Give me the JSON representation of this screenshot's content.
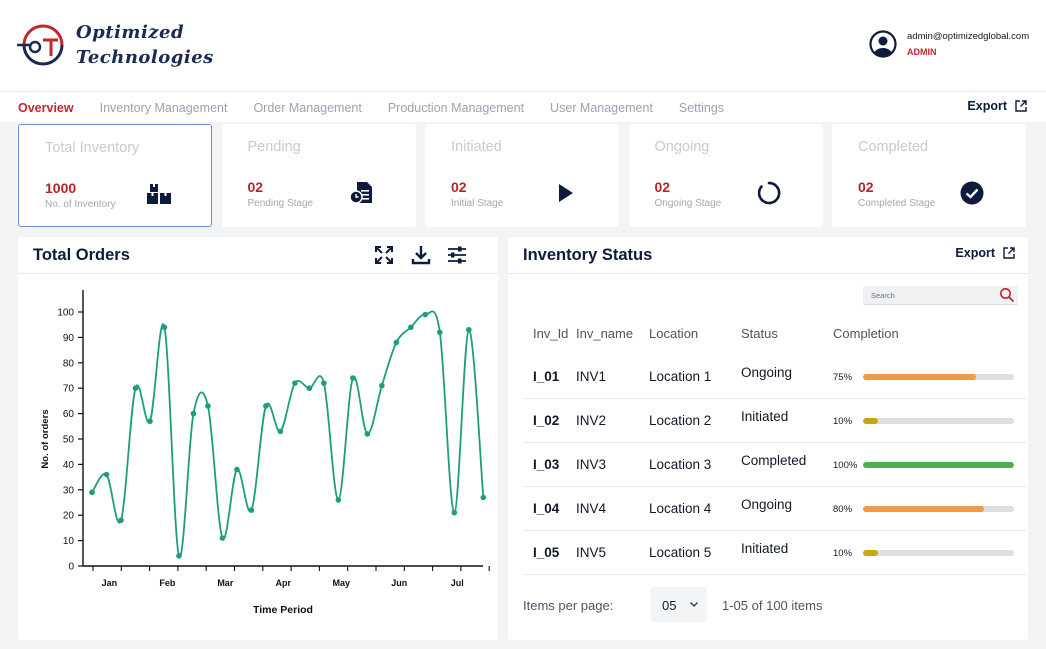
{
  "brand": {
    "line1": "Optimized",
    "line2": "Technologies",
    "mark": "OT",
    "colors": {
      "navy": "#1b2a55",
      "red": "#c0282d"
    }
  },
  "user": {
    "email": "admin@optimizedglobal.com",
    "role": "ADMIN",
    "icon": "user-circle-icon"
  },
  "nav": {
    "tabs": [
      "Overview",
      "Inventory Management",
      "Order Management",
      "Production Management",
      "User Management",
      "Settings"
    ],
    "active": "Overview",
    "export_label": "Export"
  },
  "stats": [
    {
      "title": "Total Inventory",
      "value": "1000",
      "sub": "No. of Inventory",
      "icon": "boxes-icon",
      "selected": true
    },
    {
      "title": "Pending",
      "value": "02",
      "sub": "Pending Stage",
      "icon": "pending-document-icon",
      "selected": false
    },
    {
      "title": "Initiated",
      "value": "02",
      "sub": "Initial Stage",
      "icon": "play-icon",
      "selected": false
    },
    {
      "title": "Ongoing",
      "value": "02",
      "sub": "Ongoing Stage",
      "icon": "spinner-icon",
      "selected": false
    },
    {
      "title": "Completed",
      "value": "02",
      "sub": "Completed Stage",
      "icon": "check-circle-icon",
      "selected": false
    }
  ],
  "orders": {
    "title": "Total Orders",
    "tools": [
      "fullscreen-icon",
      "download-icon",
      "filter-sliders-icon"
    ]
  },
  "chart_data": {
    "type": "line",
    "xlabel": "Time Period",
    "ylabel": "No. of orders",
    "ylim": [
      0,
      100
    ],
    "yticks": [
      0,
      10,
      20,
      30,
      40,
      50,
      60,
      70,
      80,
      90,
      100
    ],
    "xticks": [
      "Jan",
      "Feb",
      "Mar",
      "Apr",
      "May",
      "Jun",
      "Jul"
    ],
    "xlim": [
      -0.3,
      6.6
    ],
    "grid": false,
    "legend": false,
    "color": "#1e9e7e",
    "points": [
      {
        "x": -0.3,
        "y": 29
      },
      {
        "x": -0.05,
        "y": 36
      },
      {
        "x": 0.2,
        "y": 18
      },
      {
        "x": 0.45,
        "y": 70
      },
      {
        "x": 0.7,
        "y": 57
      },
      {
        "x": 0.95,
        "y": 94
      },
      {
        "x": 1.2,
        "y": 4
      },
      {
        "x": 1.45,
        "y": 60
      },
      {
        "x": 1.7,
        "y": 63
      },
      {
        "x": 1.95,
        "y": 11
      },
      {
        "x": 2.2,
        "y": 38
      },
      {
        "x": 2.45,
        "y": 22
      },
      {
        "x": 2.7,
        "y": 63
      },
      {
        "x": 2.95,
        "y": 53
      },
      {
        "x": 3.2,
        "y": 72
      },
      {
        "x": 3.45,
        "y": 70
      },
      {
        "x": 3.7,
        "y": 72
      },
      {
        "x": 3.95,
        "y": 26
      },
      {
        "x": 4.2,
        "y": 74
      },
      {
        "x": 4.45,
        "y": 52
      },
      {
        "x": 4.7,
        "y": 71
      },
      {
        "x": 4.95,
        "y": 88
      },
      {
        "x": 5.2,
        "y": 94
      },
      {
        "x": 5.45,
        "y": 99
      },
      {
        "x": 5.7,
        "y": 92
      },
      {
        "x": 5.95,
        "y": 21
      },
      {
        "x": 6.2,
        "y": 93
      },
      {
        "x": 6.45,
        "y": 27
      }
    ]
  },
  "inventory": {
    "title": "Inventory Status",
    "export_label": "Export",
    "search_placeholder": "Search",
    "columns": [
      "Inv_Id",
      "Inv_name",
      "Location",
      "Status",
      "Completion"
    ],
    "rows": [
      {
        "id": "I_01",
        "name": "INV1",
        "location": "Location 1",
        "status": "Ongoing",
        "completion": 75,
        "completion_label": "75%",
        "color": "#ef9a4b"
      },
      {
        "id": "I_02",
        "name": "INV2",
        "location": "Location 2",
        "status": "Initiated",
        "completion": 10,
        "completion_label": "10%",
        "color": "#c9a417"
      },
      {
        "id": "I_03",
        "name": "INV3",
        "location": "Location 3",
        "status": "Completed",
        "completion": 100,
        "completion_label": "100%",
        "color": "#4caf50"
      },
      {
        "id": "I_04",
        "name": "INV4",
        "location": "Location 4",
        "status": "Ongoing",
        "completion": 80,
        "completion_label": "80%",
        "color": "#ef9a4b"
      },
      {
        "id": "I_05",
        "name": "INV5",
        "location": "Location 5",
        "status": "Initiated",
        "completion": 10,
        "completion_label": "10%",
        "color": "#c9a417"
      }
    ],
    "pagination": {
      "label": "Items per page:",
      "per_page": "05",
      "range": "1-05 of 100 items"
    }
  }
}
